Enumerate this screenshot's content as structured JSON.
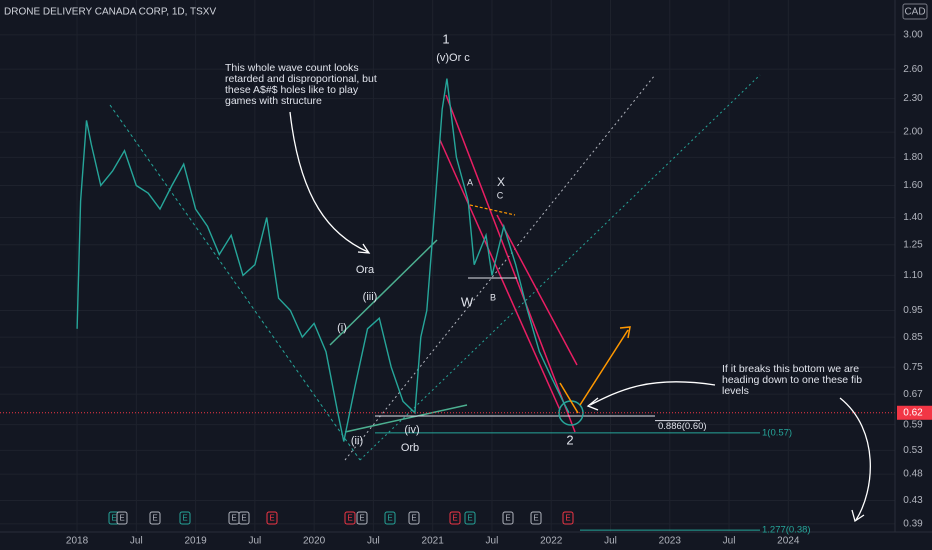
{
  "chart_data": {
    "type": "line",
    "title": "DRONE DELIVERY CANADA CORP, 1D, TSXV",
    "currency": "CAD",
    "log_scale": true,
    "grid": true,
    "x": [
      2018.0,
      2018.03,
      2018.08,
      2018.12,
      2018.2,
      2018.3,
      2018.4,
      2018.5,
      2018.6,
      2018.7,
      2018.8,
      2018.9,
      2019.0,
      2019.1,
      2019.2,
      2019.3,
      2019.4,
      2019.5,
      2019.6,
      2019.7,
      2019.8,
      2019.9,
      2020.0,
      2020.1,
      2020.2,
      2020.25,
      2020.35,
      2020.45,
      2020.55,
      2020.65,
      2020.75,
      2020.85,
      2020.9,
      2020.95,
      2021.0,
      2021.08,
      2021.12,
      2021.2,
      2021.3,
      2021.35,
      2021.45,
      2021.5,
      2021.6,
      2021.7,
      2021.8,
      2021.9,
      2022.0,
      2022.1,
      2022.15
    ],
    "series": [
      {
        "color": "#26a69a",
        "values": [
          0.88,
          1.5,
          2.1,
          1.9,
          1.6,
          1.7,
          1.85,
          1.6,
          1.55,
          1.45,
          1.6,
          1.75,
          1.45,
          1.35,
          1.2,
          1.3,
          1.1,
          1.15,
          1.4,
          1.0,
          0.95,
          0.85,
          0.9,
          0.8,
          0.62,
          0.55,
          0.7,
          0.88,
          0.92,
          0.75,
          0.65,
          0.62,
          0.85,
          0.95,
          1.3,
          2.2,
          2.5,
          1.8,
          1.5,
          1.15,
          1.3,
          1.1,
          1.35,
          1.15,
          0.95,
          0.8,
          0.72,
          0.65,
          0.62
        ]
      }
    ],
    "xlim": [
      2017.35,
      2024.9
    ],
    "xticks": [
      2018,
      {
        "value": 2018.5,
        "label": "Jul"
      },
      2019,
      {
        "value": 2019.5,
        "label": "Jul"
      },
      2020,
      {
        "value": 2020.5,
        "label": "Jul"
      },
      2021,
      {
        "value": 2021.5,
        "label": "Jul"
      },
      2022,
      {
        "value": 2022.5,
        "label": "Jul"
      },
      2023,
      {
        "value": 2023.5,
        "label": "Jul"
      },
      2024
    ],
    "ylim": [
      0.377,
      3.47
    ],
    "yticks": [
      {
        "value": 3,
        "label": "3.00"
      },
      {
        "value": 2.6,
        "label": "2.60"
      },
      {
        "value": 2.3,
        "label": "2.30"
      },
      {
        "value": 2,
        "label": "2.00"
      },
      {
        "value": 1.8,
        "label": "1.80"
      },
      {
        "value": 1.6,
        "label": "1.60"
      },
      {
        "value": 1.4,
        "label": "1.40"
      },
      {
        "value": 1.25,
        "label": "1.25"
      },
      {
        "value": 1.1,
        "label": "1.10"
      },
      {
        "value": 0.95,
        "label": "0.95"
      },
      {
        "value": 0.85,
        "label": "0.85"
      },
      {
        "value": 0.75,
        "label": "0.75"
      },
      {
        "value": 0.67,
        "label": "0.67"
      },
      {
        "value": 0.59,
        "label": "0.59"
      },
      {
        "value": 0.53,
        "label": "0.53"
      },
      {
        "value": 0.48,
        "label": "0.48"
      },
      {
        "value": 0.43,
        "label": "0.43"
      },
      {
        "value": 0.39,
        "label": "0.39"
      }
    ],
    "last_price": {
      "value": 0.62,
      "label": "0.62",
      "color": "#f23645"
    },
    "fib_levels": [
      {
        "value": 0.6,
        "label": "0.886(0.60)"
      },
      {
        "value": 0.57,
        "label": "1(0.57)"
      },
      {
        "value": 0.38,
        "label": "1.277(0.38)"
      }
    ],
    "wave_labels": [
      "1",
      "(v)Or c",
      "A",
      "X",
      "C",
      "W",
      "B",
      "Ora",
      "(iii)",
      "(i)",
      "(ii)",
      "(iv)",
      "Orb",
      "2"
    ],
    "notes": [
      [
        "This whole wave count looks",
        "retarded and disproportional, but",
        "these A$#$ holes like to play",
        "games with structure"
      ],
      [
        "If it breaks this bottom we are",
        "heading down to one these fib",
        "levels"
      ]
    ],
    "events": [
      "E",
      "E",
      "E",
      "E",
      "E",
      "E",
      "E",
      "E",
      "E",
      "E",
      "E",
      "E",
      "E",
      "E",
      "E",
      "E"
    ]
  }
}
